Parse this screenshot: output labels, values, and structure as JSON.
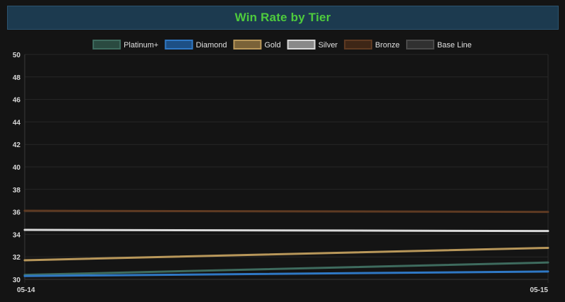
{
  "title": "Win Rate by Tier",
  "chart_data": {
    "type": "line",
    "title": "Win Rate by Tier",
    "xlabel": "",
    "ylabel": "",
    "x": [
      "05-14",
      "05-15"
    ],
    "ylim": [
      30,
      50
    ],
    "yticks": [
      30,
      32,
      34,
      36,
      38,
      40,
      42,
      44,
      46,
      48,
      50
    ],
    "grid": true,
    "legend_position": "top-center",
    "series": [
      {
        "name": "Platinum+",
        "values": [
          30.4,
          31.5
        ],
        "color": "#3e6b5e",
        "fill": "#2a4a40"
      },
      {
        "name": "Diamond",
        "values": [
          30.3,
          30.7
        ],
        "color": "#2f78c4",
        "fill": "#1d4f85"
      },
      {
        "name": "Gold",
        "values": [
          31.7,
          32.8
        ],
        "color": "#b8975a",
        "fill": "#7a6238"
      },
      {
        "name": "Silver",
        "values": [
          34.4,
          34.3
        ],
        "color": "#d9d9d9",
        "fill": "#8a8a8a"
      },
      {
        "name": "Bronze",
        "values": [
          36.1,
          36.0
        ],
        "color": "#5e3a22",
        "fill": "#3e2616"
      },
      {
        "name": "Base Line",
        "values": [
          null,
          null
        ],
        "color": "#4a4a4a",
        "fill": "#303030"
      }
    ]
  }
}
